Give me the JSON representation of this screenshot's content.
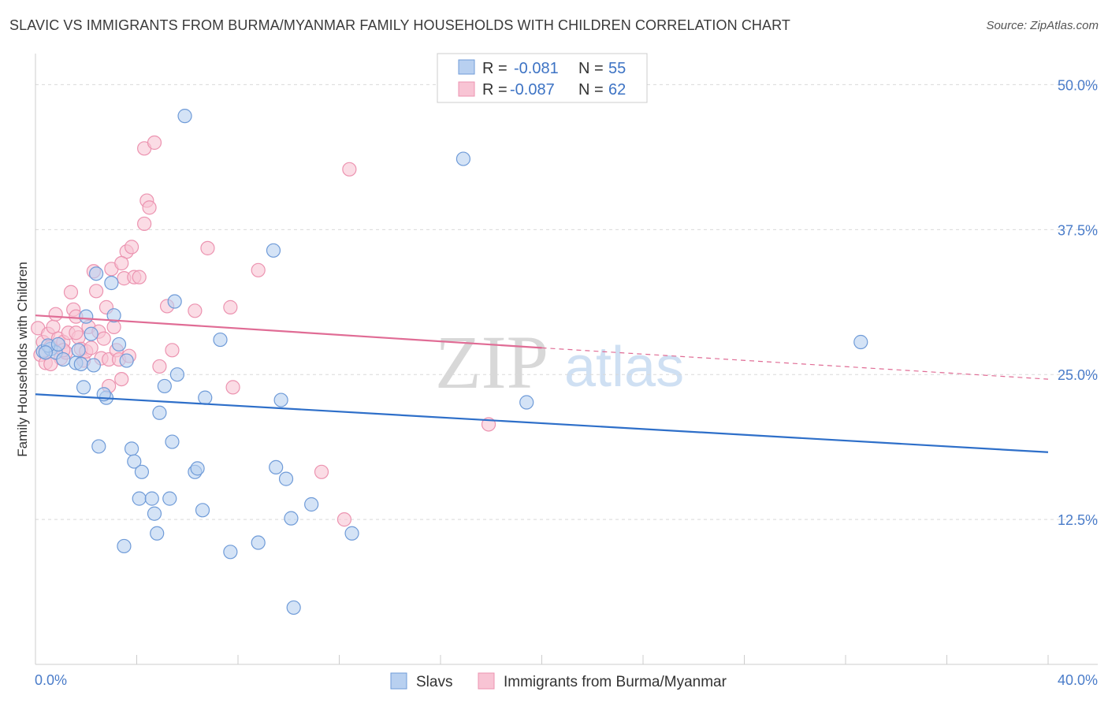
{
  "header": {
    "title": "SLAVIC VS IMMIGRANTS FROM BURMA/MYANMAR FAMILY HOUSEHOLDS WITH CHILDREN CORRELATION CHART",
    "source": "Source: ZipAtlas.com"
  },
  "watermark": {
    "zip": "ZIP",
    "atlas": "atlas"
  },
  "legend": {
    "rows": [
      {
        "r_label": "R =",
        "r_value": "-0.081",
        "n_label": "N =",
        "n_value": "55"
      },
      {
        "r_label": "R =",
        "r_value": "-0.087",
        "n_label": "N =",
        "n_value": "62"
      }
    ]
  },
  "bottom_legend": {
    "series1": "Slavs",
    "series2": "Immigrants from Burma/Myanmar"
  },
  "colors": {
    "slavs_fill": "#b8d0f0",
    "slavs_stroke": "#6f9bd8",
    "slavs_line": "#2e6fc9",
    "burma_fill": "#f8c4d4",
    "burma_stroke": "#ec93b0",
    "burma_line": "#e06c95",
    "grid": "#d9d9d9",
    "axis_text": "#4a7cc9"
  },
  "chart_data": {
    "type": "scatter",
    "title": "SLAVIC VS IMMIGRANTS FROM BURMA/MYANMAR FAMILY HOUSEHOLDS WITH CHILDREN CORRELATION CHART",
    "xlabel": "",
    "ylabel": "Family Households with Children",
    "xlim": [
      0,
      40
    ],
    "ylim": [
      0,
      52
    ],
    "x_tick_labels": [
      "0.0%",
      "40.0%"
    ],
    "y_ticks": [
      12.5,
      25.0,
      37.5,
      50.0
    ],
    "y_tick_labels": [
      "12.5%",
      "25.0%",
      "37.5%",
      "50.0%"
    ],
    "grid": true,
    "legend_position": "top-center",
    "series": [
      {
        "name": "Slavs",
        "r": -0.081,
        "n": 55,
        "trend": {
          "x": [
            0,
            40
          ],
          "y": [
            23.3,
            18.3
          ],
          "dashed_from": null
        },
        "points": [
          [
            0.3,
            27.0
          ],
          [
            0.6,
            27.2
          ],
          [
            0.8,
            26.9
          ],
          [
            0.5,
            27.5
          ],
          [
            0.9,
            27.6
          ],
          [
            1.1,
            26.3
          ],
          [
            1.6,
            26.0
          ],
          [
            1.8,
            25.9
          ],
          [
            1.7,
            27.1
          ],
          [
            2.0,
            30.0
          ],
          [
            2.3,
            25.8
          ],
          [
            2.2,
            28.5
          ],
          [
            2.4,
            33.7
          ],
          [
            2.8,
            23.0
          ],
          [
            3.0,
            32.9
          ],
          [
            3.1,
            30.1
          ],
          [
            3.3,
            27.6
          ],
          [
            3.6,
            26.2
          ],
          [
            1.9,
            23.9
          ],
          [
            2.7,
            23.3
          ],
          [
            2.5,
            18.8
          ],
          [
            3.8,
            18.6
          ],
          [
            3.9,
            17.5
          ],
          [
            4.2,
            16.6
          ],
          [
            4.1,
            14.3
          ],
          [
            4.6,
            14.3
          ],
          [
            5.3,
            14.3
          ],
          [
            4.7,
            13.0
          ],
          [
            4.8,
            11.3
          ],
          [
            3.5,
            10.2
          ],
          [
            4.9,
            21.7
          ],
          [
            5.1,
            24.0
          ],
          [
            5.4,
            19.2
          ],
          [
            5.6,
            25.0
          ],
          [
            5.5,
            31.3
          ],
          [
            5.9,
            47.3
          ],
          [
            6.3,
            16.6
          ],
          [
            6.4,
            16.9
          ],
          [
            6.7,
            23.0
          ],
          [
            6.6,
            13.3
          ],
          [
            7.3,
            28.0
          ],
          [
            7.7,
            9.7
          ],
          [
            8.8,
            10.5
          ],
          [
            9.4,
            35.7
          ],
          [
            9.5,
            17.0
          ],
          [
            9.7,
            22.8
          ],
          [
            9.9,
            16.0
          ],
          [
            10.1,
            12.6
          ],
          [
            10.2,
            4.9
          ],
          [
            10.9,
            13.8
          ],
          [
            12.5,
            11.3
          ],
          [
            16.9,
            43.6
          ],
          [
            19.4,
            22.6
          ],
          [
            32.6,
            27.8
          ],
          [
            0.4,
            26.9
          ]
        ]
      },
      {
        "name": "Immigrants from Burma/Myanmar",
        "r": -0.087,
        "n": 62,
        "trend": {
          "x": [
            0,
            20
          ],
          "y": [
            30.1,
            27.3
          ],
          "dashed_to": [
            40,
            24.6
          ]
        },
        "points": [
          [
            0.1,
            29.0
          ],
          [
            0.2,
            26.7
          ],
          [
            0.3,
            27.8
          ],
          [
            0.4,
            26.0
          ],
          [
            0.5,
            28.5
          ],
          [
            0.6,
            27.4
          ],
          [
            0.7,
            29.1
          ],
          [
            0.8,
            30.2
          ],
          [
            0.9,
            28.1
          ],
          [
            1.0,
            26.4
          ],
          [
            1.1,
            27.8
          ],
          [
            1.2,
            26.9
          ],
          [
            1.3,
            28.6
          ],
          [
            1.4,
            32.1
          ],
          [
            1.5,
            30.6
          ],
          [
            1.6,
            30.0
          ],
          [
            1.7,
            28.2
          ],
          [
            1.8,
            27.2
          ],
          [
            1.9,
            26.2
          ],
          [
            2.0,
            27.0
          ],
          [
            2.1,
            29.1
          ],
          [
            2.2,
            27.3
          ],
          [
            2.3,
            33.9
          ],
          [
            2.4,
            32.2
          ],
          [
            2.5,
            28.7
          ],
          [
            2.6,
            26.4
          ],
          [
            2.7,
            28.1
          ],
          [
            2.8,
            30.8
          ],
          [
            2.9,
            26.3
          ],
          [
            3.0,
            34.1
          ],
          [
            3.1,
            29.1
          ],
          [
            3.2,
            27.1
          ],
          [
            3.3,
            26.3
          ],
          [
            3.4,
            24.6
          ],
          [
            3.5,
            33.3
          ],
          [
            3.6,
            35.6
          ],
          [
            3.7,
            26.6
          ],
          [
            3.8,
            36.0
          ],
          [
            3.9,
            33.4
          ],
          [
            4.1,
            33.4
          ],
          [
            4.3,
            44.5
          ],
          [
            4.4,
            40.0
          ],
          [
            4.5,
            39.4
          ],
          [
            4.7,
            45.0
          ],
          [
            4.9,
            25.7
          ],
          [
            5.2,
            30.9
          ],
          [
            5.4,
            27.1
          ],
          [
            6.3,
            30.5
          ],
          [
            6.8,
            35.9
          ],
          [
            7.7,
            30.8
          ],
          [
            7.8,
            23.9
          ],
          [
            8.8,
            34.0
          ],
          [
            11.3,
            16.6
          ],
          [
            12.2,
            12.5
          ],
          [
            12.4,
            42.7
          ],
          [
            17.9,
            20.7
          ],
          [
            3.4,
            34.6
          ],
          [
            4.3,
            38.0
          ],
          [
            2.9,
            24.0
          ],
          [
            0.6,
            25.9
          ],
          [
            1.1,
            27.1
          ],
          [
            1.6,
            28.6
          ]
        ]
      }
    ]
  }
}
